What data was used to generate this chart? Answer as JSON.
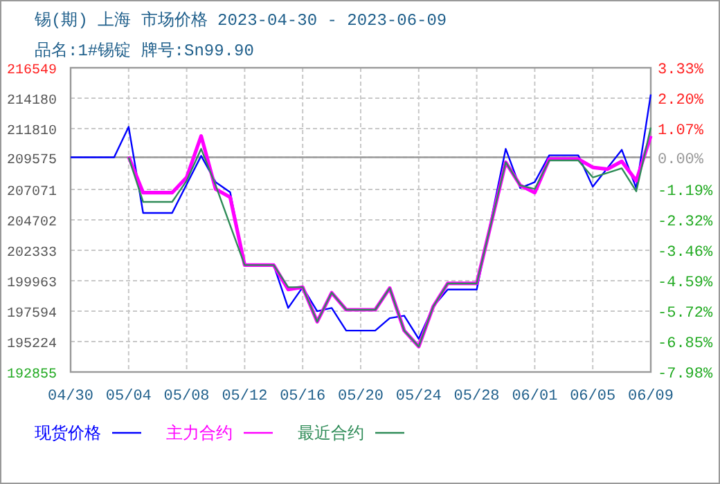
{
  "chart_data": {
    "type": "line",
    "title": "锡(期) 上海 市场价格 2023-04-30 - 2023-06-09",
    "subtitle": "品名:1#锡锭 牌号:Sn99.90",
    "xlim": [
      "2023-04-30",
      "2023-06-09"
    ],
    "xticks": [
      {
        "value": "2023-04-30",
        "label": "04/30"
      },
      {
        "value": "2023-05-04",
        "label": "05/04"
      },
      {
        "value": "2023-05-08",
        "label": "05/08"
      },
      {
        "value": "2023-05-12",
        "label": "05/12"
      },
      {
        "value": "2023-05-16",
        "label": "05/16"
      },
      {
        "value": "2023-05-20",
        "label": "05/20"
      },
      {
        "value": "2023-05-24",
        "label": "05/24"
      },
      {
        "value": "2023-05-28",
        "label": "05/28"
      },
      {
        "value": "2023-06-01",
        "label": "06/01"
      },
      {
        "value": "2023-06-05",
        "label": "06/05"
      },
      {
        "value": "2023-06-09",
        "label": "06/09"
      }
    ],
    "ylim": [
      192855,
      216549
    ],
    "yticks": [
      192855,
      195224,
      197594,
      199963,
      202333,
      204702,
      207071,
      209575,
      211810,
      214180,
      216549
    ],
    "y2lim": [
      -7.98,
      3.33
    ],
    "y2ticks": [
      {
        "value": -7.98,
        "label": "-7.98%"
      },
      {
        "value": -6.85,
        "label": "-6.85%"
      },
      {
        "value": -5.72,
        "label": "-5.72%"
      },
      {
        "value": -4.59,
        "label": "-4.59%"
      },
      {
        "value": -3.46,
        "label": "-3.46%"
      },
      {
        "value": -2.32,
        "label": "-2.32%"
      },
      {
        "value": -1.19,
        "label": "-1.19%"
      },
      {
        "value": 0,
        "label": "0.00%"
      },
      {
        "value": 1.07,
        "label": "1.07%"
      },
      {
        "value": 2.2,
        "label": "2.20%"
      },
      {
        "value": 3.33,
        "label": "3.33%"
      }
    ],
    "ref_lines": [
      {
        "axis": "y2",
        "value": 0,
        "color": "#999999"
      }
    ],
    "grid": true,
    "legend": "bottom",
    "marker": "none",
    "line_style": "solid",
    "series": [
      {
        "name": "现货价格",
        "color": "#0000ff",
        "x": [
          "2023-04-30",
          "2023-05-03",
          "2023-05-04",
          "2023-05-05",
          "2023-05-07",
          "2023-05-09",
          "2023-05-10",
          "2023-05-11",
          "2023-05-12",
          "2023-05-14",
          "2023-05-15",
          "2023-05-16",
          "2023-05-17",
          "2023-05-18",
          "2023-05-19",
          "2023-05-21",
          "2023-05-22",
          "2023-05-23",
          "2023-05-24",
          "2023-05-25",
          "2023-05-26",
          "2023-05-28",
          "2023-05-30",
          "2023-05-31",
          "2023-06-01",
          "2023-06-02",
          "2023-06-04",
          "2023-06-05",
          "2023-06-06",
          "2023-06-07",
          "2023-06-08",
          "2023-06-09"
        ],
        "values": [
          209575,
          209575,
          211950,
          205240,
          205240,
          209690,
          207640,
          206860,
          201180,
          201180,
          197840,
          199460,
          197590,
          197840,
          196080,
          196080,
          197050,
          197240,
          195440,
          197950,
          199280,
          199280,
          210230,
          207180,
          207640,
          209730,
          209730,
          207290,
          208720,
          210160,
          207180,
          214470
        ]
      },
      {
        "name": "主力合约",
        "color": "#ff00ff",
        "x": [
          "2023-05-04",
          "2023-05-05",
          "2023-05-07",
          "2023-05-08",
          "2023-05-09",
          "2023-05-10",
          "2023-05-11",
          "2023-05-12",
          "2023-05-14",
          "2023-05-15",
          "2023-05-16",
          "2023-05-17",
          "2023-05-18",
          "2023-05-19",
          "2023-05-21",
          "2023-05-22",
          "2023-05-23",
          "2023-05-24",
          "2023-05-25",
          "2023-05-26",
          "2023-05-28",
          "2023-05-30",
          "2023-05-31",
          "2023-06-01",
          "2023-06-02",
          "2023-06-04",
          "2023-06-05",
          "2023-06-06",
          "2023-06-07",
          "2023-06-08",
          "2023-06-09"
        ],
        "values": [
          209630,
          206820,
          206820,
          208010,
          211240,
          207100,
          206460,
          201180,
          201180,
          199280,
          199460,
          196770,
          199030,
          197700,
          197700,
          199390,
          196080,
          194830,
          197950,
          199750,
          199750,
          209190,
          207390,
          206820,
          209440,
          209440,
          208790,
          208650,
          209260,
          207750,
          211240
        ]
      },
      {
        "name": "最近合约",
        "color": "#2e8b57",
        "x": [
          "2023-05-04",
          "2023-05-05",
          "2023-05-07",
          "2023-05-08",
          "2023-05-09",
          "2023-05-10",
          "2023-05-12",
          "2023-05-14",
          "2023-05-15",
          "2023-05-16",
          "2023-05-17",
          "2023-05-18",
          "2023-05-19",
          "2023-05-21",
          "2023-05-22",
          "2023-05-23",
          "2023-05-24",
          "2023-05-25",
          "2023-05-26",
          "2023-05-28",
          "2023-05-30",
          "2023-05-31",
          "2023-06-01",
          "2023-06-02",
          "2023-06-04",
          "2023-06-05",
          "2023-06-06",
          "2023-06-07",
          "2023-06-08",
          "2023-06-09"
        ],
        "values": [
          209575,
          206100,
          206100,
          207750,
          210230,
          207390,
          201180,
          201180,
          199460,
          199460,
          196770,
          199030,
          197700,
          197700,
          199390,
          196080,
          194830,
          197950,
          199750,
          199750,
          209190,
          207390,
          207100,
          209330,
          209330,
          208010,
          208360,
          208720,
          206930,
          211890
        ]
      }
    ]
  }
}
